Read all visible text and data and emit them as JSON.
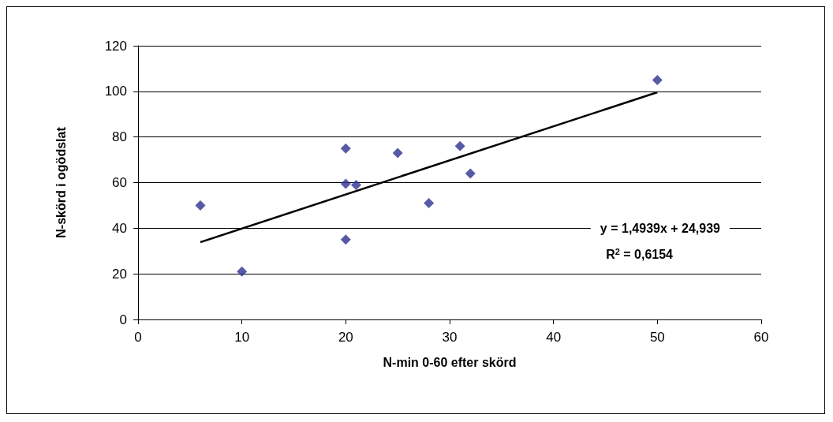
{
  "chart_data": {
    "type": "scatter",
    "xlabel": "N-min 0-60 efter skörd",
    "ylabel": "N-skörd i ogödslat",
    "xlim": [
      0,
      60
    ],
    "xticks": [
      0,
      10,
      20,
      30,
      40,
      50,
      60
    ],
    "ylim": [
      0,
      120
    ],
    "yticks": [
      0,
      20,
      40,
      60,
      80,
      100,
      120
    ],
    "grid": "y",
    "series": [
      {
        "marker": "diamond",
        "color": "#2e3192",
        "x": [
          6,
          10,
          20,
          20,
          21,
          20,
          25,
          28,
          31,
          32,
          50
        ],
        "values": [
          50,
          21,
          75,
          59.5,
          59,
          35,
          73,
          51,
          76,
          64,
          105
        ]
      },
      {
        "type": "line",
        "marker": "none",
        "line_style": "solid",
        "color": "#000000",
        "x": [
          6,
          50
        ],
        "values": [
          33.9,
          99.6
        ]
      }
    ],
    "annotations": [
      "y = 1,4939x + 24,939",
      "R$^{2}$ = 0,6154"
    ]
  }
}
